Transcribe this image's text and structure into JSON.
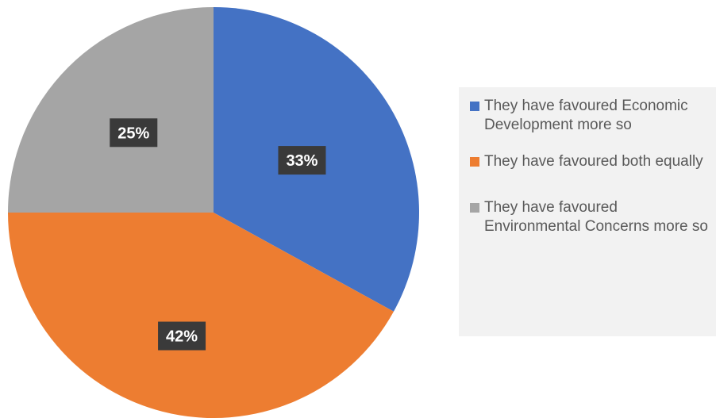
{
  "chart_data": {
    "type": "pie",
    "title": "",
    "start_angle_deg": 0,
    "direction": "clockwise",
    "slices": [
      {
        "label": "They have favoured Economic Development more so",
        "value": 33,
        "display": "33%",
        "color": "#4472c4"
      },
      {
        "label": "They have favoured both equally",
        "value": 42,
        "display": "42%",
        "color": "#ed7d31"
      },
      {
        "label": "They have favoured Environmental Concerns more so",
        "value": 25,
        "display": "25%",
        "color": "#a5a5a5"
      }
    ],
    "legend_position": "right"
  }
}
